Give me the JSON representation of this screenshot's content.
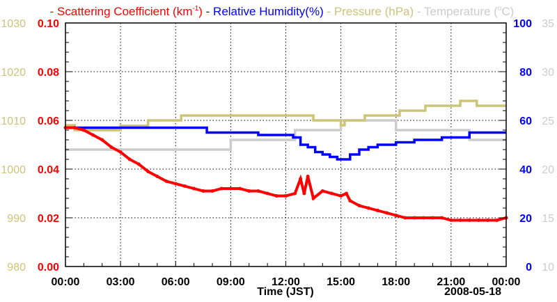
{
  "chart_data": {
    "type": "line",
    "legend": [
      {
        "label": "Scattering Coefficient (km",
        "sup": "-1",
        "suffix": ")",
        "color": "#ff0000"
      },
      {
        "label": "Relative Humidity(%)",
        "color": "#0000ff"
      },
      {
        "label": "Pressure (hPa)",
        "color": "#cdc47a"
      },
      {
        "label": "Temperature (",
        "sup": "o",
        "suffix": "C)",
        "color": "#cccccc"
      }
    ],
    "legend_placement": "top",
    "xlabel": "Time (JST)",
    "date_label": "2008-05-18",
    "xlim": [
      0,
      24
    ],
    "x_ticks": [
      "00:00",
      "03:00",
      "06:00",
      "09:00",
      "12:00",
      "15:00",
      "18:00",
      "21:00",
      "00:00"
    ],
    "axes": {
      "scattering": {
        "range": [
          0,
          0.1
        ],
        "ticks": [
          "0.00",
          "0.02",
          "0.04",
          "0.06",
          "0.08",
          "0.10"
        ],
        "color": "#ff0000",
        "side": "left-inner"
      },
      "pressure": {
        "range": [
          980,
          1030
        ],
        "ticks": [
          "980",
          "990",
          "1000",
          "1010",
          "1020",
          "1030"
        ],
        "color": "#cdc47a",
        "side": "left-outer"
      },
      "humidity": {
        "range": [
          0,
          100
        ],
        "ticks": [
          "0",
          "20",
          "40",
          "60",
          "80",
          "100"
        ],
        "color": "#0000ff",
        "side": "right-inner"
      },
      "temperature": {
        "range": [
          10,
          35
        ],
        "ticks": [
          "10",
          "15",
          "20",
          "25",
          "30",
          "35"
        ],
        "color": "#cccccc",
        "side": "right-outer"
      }
    },
    "grid": true,
    "series": [
      {
        "name": "Scattering Coefficient",
        "axis": "scattering",
        "color": "#ff0000",
        "step": false,
        "x": [
          0,
          0.5,
          1,
          1.5,
          2,
          2.5,
          3,
          3.5,
          4,
          4.5,
          5,
          5.5,
          6,
          6.5,
          7,
          7.5,
          8,
          8.5,
          9,
          9.5,
          10,
          10.5,
          11,
          11.5,
          12,
          12.5,
          12.8,
          13,
          13.2,
          13.5,
          14,
          14.5,
          15,
          15.3,
          15.5,
          16,
          16.5,
          17,
          17.5,
          18,
          18.5,
          19,
          19.5,
          20,
          20.5,
          21,
          21.5,
          22,
          22.5,
          23,
          23.5,
          24
        ],
        "y": [
          0.057,
          0.057,
          0.056,
          0.054,
          0.052,
          0.049,
          0.047,
          0.044,
          0.042,
          0.039,
          0.037,
          0.035,
          0.034,
          0.033,
          0.032,
          0.031,
          0.031,
          0.032,
          0.032,
          0.032,
          0.031,
          0.031,
          0.03,
          0.029,
          0.029,
          0.03,
          0.036,
          0.03,
          0.037,
          0.028,
          0.031,
          0.03,
          0.029,
          0.03,
          0.027,
          0.025,
          0.024,
          0.023,
          0.022,
          0.021,
          0.02,
          0.02,
          0.02,
          0.02,
          0.02,
          0.019,
          0.019,
          0.019,
          0.019,
          0.019,
          0.019,
          0.02
        ]
      },
      {
        "name": "Relative Humidity",
        "axis": "humidity",
        "color": "#0000ff",
        "step": true,
        "x": [
          0,
          7.7,
          10.5,
          12.4,
          12.8,
          13.2,
          13.6,
          14,
          14.4,
          14.8,
          15.2,
          15.5,
          16,
          16.5,
          17,
          18,
          19,
          20.5,
          22,
          24
        ],
        "y": [
          57,
          55,
          54,
          53,
          50,
          49,
          47,
          46,
          45,
          44,
          44,
          46,
          48,
          49,
          50,
          51,
          52,
          53,
          55,
          55
        ]
      },
      {
        "name": "Pressure",
        "axis": "pressure",
        "color": "#cdc47a",
        "step": true,
        "x": [
          0,
          0.5,
          3,
          4.5,
          6.3,
          13.5,
          15,
          15.2,
          16.3,
          16.6,
          18.2,
          19.6,
          21.5,
          22.4,
          24
        ],
        "y": [
          1009,
          1008,
          1008.9,
          1010,
          1011,
          1010,
          1009,
          1010,
          1011,
          1011,
          1012,
          1013,
          1014,
          1013,
          1013
        ]
      },
      {
        "name": "Temperature",
        "axis": "temperature",
        "color": "#cccccc",
        "step": true,
        "x": [
          0,
          9,
          12.5,
          15,
          18,
          22,
          24
        ],
        "y": [
          22,
          23,
          24,
          25,
          24,
          23,
          23
        ]
      }
    ]
  }
}
